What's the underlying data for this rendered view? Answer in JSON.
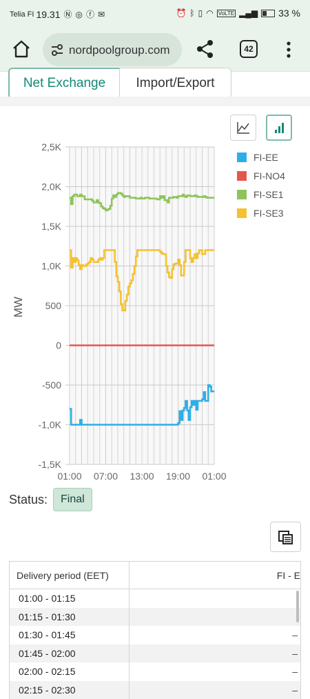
{
  "status_bar": {
    "carrier": "Telia FI",
    "time": "19.31",
    "battery": "33 %"
  },
  "browser": {
    "url": "nordpoolgroup.com",
    "tab_count": "42"
  },
  "tabs": [
    {
      "label": "Net Exchange",
      "active": true
    },
    {
      "label": "Import/Export",
      "active": false
    }
  ],
  "chart_data": {
    "type": "line",
    "ylabel": "MW",
    "ylim": [
      -1500,
      2500
    ],
    "yticks": [
      "2,5K",
      "2,0K",
      "1,5K",
      "1,0K",
      "500",
      "0",
      "-500",
      "-1,0K",
      "-1,5K"
    ],
    "ytick_values": [
      2500,
      2000,
      1500,
      1000,
      500,
      0,
      -500,
      -1000,
      -1500
    ],
    "xticks": [
      "01:00",
      "07:00",
      "13:00",
      "19:00",
      "01:00"
    ],
    "xlim": [
      0,
      96
    ],
    "grid": true,
    "legend_position": "right",
    "series": [
      {
        "name": "FI-EE",
        "color": "#2eaee6",
        "values": [
          -800,
          -1000,
          -1000,
          -1000,
          -1000,
          -1000,
          -1000,
          -940,
          -1000,
          -1000,
          -1000,
          -1000,
          -1000,
          -1000,
          -1000,
          -1000,
          -1000,
          -1000,
          -1000,
          -1000,
          -1000,
          -1000,
          -1000,
          -1000,
          -1000,
          -1000,
          -1000,
          -1000,
          -1000,
          -1000,
          -1000,
          -1000,
          -1000,
          -1000,
          -1000,
          -1000,
          -1000,
          -1000,
          -1000,
          -1000,
          -1000,
          -1000,
          -1000,
          -1000,
          -1000,
          -1000,
          -1000,
          -1000,
          -1000,
          -1000,
          -1000,
          -1000,
          -1000,
          -1000,
          -1000,
          -1000,
          -1000,
          -1000,
          -1000,
          -1000,
          -1000,
          -1000,
          -1000,
          -1000,
          -1000,
          -1000,
          -1000,
          -1000,
          -1000,
          -1000,
          -1000,
          -1000,
          -980,
          -830,
          -940,
          -820,
          -790,
          -700,
          -820,
          -940,
          -780,
          -700,
          -750,
          -700,
          -810,
          -700,
          -700,
          -700,
          -680,
          -590,
          -700,
          -700,
          -500,
          -520,
          -580,
          -580
        ]
      },
      {
        "name": "FI-NO4",
        "color": "#e5574b",
        "values": [
          0,
          0,
          0,
          0,
          0,
          0,
          0,
          0,
          0,
          0,
          0,
          0,
          0,
          0,
          0,
          0,
          0,
          0,
          0,
          0,
          0,
          0,
          0,
          0,
          0,
          0,
          0,
          0,
          0,
          0,
          0,
          0,
          0,
          0,
          0,
          0,
          0,
          0,
          0,
          0,
          0,
          0,
          0,
          0,
          0,
          0,
          0,
          0,
          0,
          0,
          0,
          0,
          0,
          0,
          0,
          0,
          0,
          0,
          0,
          0,
          0,
          0,
          0,
          0,
          0,
          0,
          0,
          0,
          0,
          0,
          0,
          0,
          0,
          0,
          0,
          0,
          0,
          0,
          0,
          0,
          0,
          0,
          0,
          0,
          0,
          0,
          0,
          0,
          0,
          0,
          0,
          0,
          0,
          0,
          0,
          0
        ]
      },
      {
        "name": "FI-SE1",
        "color": "#8fc45c",
        "values": [
          1860,
          1780,
          1880,
          1900,
          1900,
          1880,
          1880,
          1900,
          1880,
          1880,
          1840,
          1840,
          1840,
          1840,
          1840,
          1820,
          1800,
          1800,
          1830,
          1800,
          1790,
          1750,
          1730,
          1720,
          1700,
          1710,
          1720,
          1760,
          1850,
          1890,
          1870,
          1900,
          1920,
          1920,
          1910,
          1890,
          1870,
          1880,
          1880,
          1880,
          1860,
          1860,
          1860,
          1860,
          1850,
          1850,
          1850,
          1860,
          1850,
          1850,
          1860,
          1860,
          1860,
          1850,
          1850,
          1850,
          1850,
          1850,
          1840,
          1840,
          1880,
          1860,
          1880,
          1830,
          1830,
          1800,
          1860,
          1860,
          1860,
          1870,
          1870,
          1860,
          1880,
          1880,
          1880,
          1900,
          1880,
          1870,
          1890,
          1890,
          1880,
          1880,
          1880,
          1890,
          1880,
          1870,
          1870,
          1870,
          1870,
          1880,
          1870,
          1860,
          1860,
          1860,
          1860,
          1860
        ]
      },
      {
        "name": "FI-SE3",
        "color": "#f5c12e",
        "values": [
          1200,
          980,
          1100,
          1050,
          1100,
          1070,
          1010,
          960,
          1010,
          1000,
          1000,
          1020,
          1030,
          1050,
          1100,
          1080,
          1050,
          1050,
          1050,
          1080,
          1100,
          1080,
          1100,
          1200,
          1200,
          1200,
          1200,
          1200,
          1200,
          1200,
          1050,
          870,
          800,
          680,
          520,
          440,
          440,
          560,
          640,
          740,
          780,
          820,
          900,
          1000,
          1120,
          1200,
          1200,
          1200,
          1200,
          1200,
          1200,
          1200,
          1200,
          1200,
          1200,
          1200,
          1200,
          1200,
          1200,
          1200,
          1180,
          1160,
          1150,
          1150,
          1000,
          920,
          860,
          850,
          960,
          1020,
          1030,
          1030,
          1080,
          1010,
          880,
          880,
          1050,
          1200,
          1200,
          1200,
          1100,
          1050,
          1100,
          1150,
          1100,
          1160,
          1200,
          1200,
          1150,
          1150,
          1200,
          1200,
          1200,
          1200,
          1200,
          1200
        ]
      }
    ]
  },
  "status": {
    "label": "Status:",
    "value": "Final"
  },
  "table": {
    "columns": [
      "Delivery period (EET)",
      "FI - E"
    ],
    "rows": [
      {
        "period": "01:00 - 01:15",
        "value": ""
      },
      {
        "period": "01:15 - 01:30",
        "value": ""
      },
      {
        "period": "01:30 - 01:45",
        "value": "–"
      },
      {
        "period": "01:45 - 02:00",
        "value": "–"
      },
      {
        "period": "02:00 - 02:15",
        "value": "–"
      },
      {
        "period": "02:15 - 02:30",
        "value": "–"
      }
    ]
  }
}
